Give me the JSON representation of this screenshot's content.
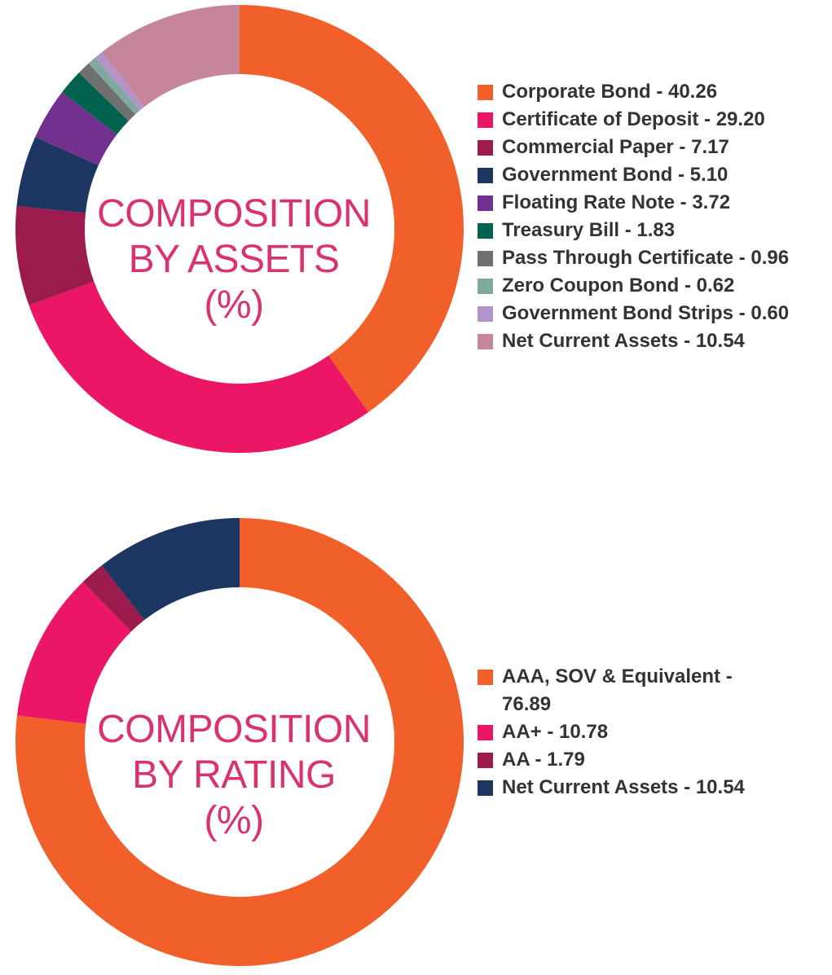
{
  "chart_data": [
    {
      "type": "pie",
      "title": "COMPOSITION BY ASSETS (%)",
      "title_lines": [
        "COMPOSITION",
        "BY ASSETS",
        "(%)"
      ],
      "legend_placement": "right",
      "series": [
        {
          "name": "Corporate Bond",
          "value": 40.26,
          "label": "Corporate Bond - 40.26",
          "color": "#f15f2a"
        },
        {
          "name": "Certificate of Deposit",
          "value": 29.2,
          "label": "Certificate of Deposit - 29.20",
          "color": "#ec1667"
        },
        {
          "name": "Commercial Paper",
          "value": 7.17,
          "label": "Commercial Paper - 7.17",
          "color": "#9b1b4d"
        },
        {
          "name": "Government Bond",
          "value": 5.1,
          "label": "Government Bond - 5.10",
          "color": "#1c3661"
        },
        {
          "name": "Floating Rate Note",
          "value": 3.72,
          "label": "Floating Rate Note - 3.72",
          "color": "#72308f"
        },
        {
          "name": "Treasury Bill",
          "value": 1.83,
          "label": "Treasury Bill - 1.83",
          "color": "#00624f"
        },
        {
          "name": "Pass Through Certificate",
          "value": 0.96,
          "label": "Pass Through Certificate - 0.96",
          "color": "#707070"
        },
        {
          "name": "Zero Coupon Bond",
          "value": 0.62,
          "label": "Zero Coupon Bond - 0.62",
          "color": "#7fa89f"
        },
        {
          "name": "Government Bond Strips",
          "value": 0.6,
          "label": "Government Bond Strips - 0.60",
          "color": "#b394c9"
        },
        {
          "name": "Net Current Assets",
          "value": 10.54,
          "label": "Net Current Assets - 10.54",
          "color": "#c5869d"
        }
      ]
    },
    {
      "type": "pie",
      "title": "COMPOSITION BY RATING (%)",
      "title_lines": [
        "COMPOSITION",
        "BY RATING",
        "(%)"
      ],
      "legend_placement": "right",
      "series": [
        {
          "name": "AAA, SOV & Equivalent",
          "value": 76.89,
          "label": "AAA, SOV & Equivalent - 76.89",
          "color": "#f15f2a"
        },
        {
          "name": "AA+",
          "value": 10.78,
          "label": "AA+ - 10.78",
          "color": "#ec1667"
        },
        {
          "name": "AA",
          "value": 1.79,
          "label": "AA - 1.79",
          "color": "#9b1b4d"
        },
        {
          "name": "Net Current Assets",
          "value": 10.54,
          "label": "Net Current Assets - 10.54",
          "color": "#1c3661"
        }
      ]
    }
  ]
}
